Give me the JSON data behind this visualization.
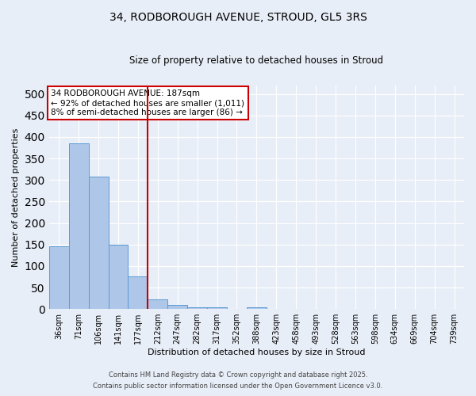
{
  "title_line1": "34, RODBOROUGH AVENUE, STROUD, GL5 3RS",
  "title_line2": "Size of property relative to detached houses in Stroud",
  "xlabel": "Distribution of detached houses by size in Stroud",
  "ylabel": "Number of detached properties",
  "bar_labels": [
    "36sqm",
    "71sqm",
    "106sqm",
    "141sqm",
    "177sqm",
    "212sqm",
    "247sqm",
    "282sqm",
    "317sqm",
    "352sqm",
    "388sqm",
    "423sqm",
    "458sqm",
    "493sqm",
    "528sqm",
    "563sqm",
    "598sqm",
    "634sqm",
    "669sqm",
    "704sqm",
    "739sqm"
  ],
  "bar_values": [
    145,
    385,
    308,
    150,
    75,
    22,
    9,
    4,
    4,
    1,
    4,
    0,
    0,
    0,
    0,
    0,
    0,
    0,
    0,
    0,
    0
  ],
  "bar_color": "#aec6e8",
  "bar_edge_color": "#5b9bd5",
  "red_line_x": 4.5,
  "annotation_text": "34 RODBOROUGH AVENUE: 187sqm\n← 92% of detached houses are smaller (1,011)\n8% of semi-detached houses are larger (86) →",
  "annotation_box_color": "#ffffff",
  "annotation_box_edge": "#cc0000",
  "ylim": [
    0,
    520
  ],
  "yticks": [
    0,
    50,
    100,
    150,
    200,
    250,
    300,
    350,
    400,
    450,
    500
  ],
  "background_color": "#e8eef7",
  "grid_color": "#ffffff",
  "footer_line1": "Contains HM Land Registry data © Crown copyright and database right 2025.",
  "footer_line2": "Contains public sector information licensed under the Open Government Licence v3.0."
}
